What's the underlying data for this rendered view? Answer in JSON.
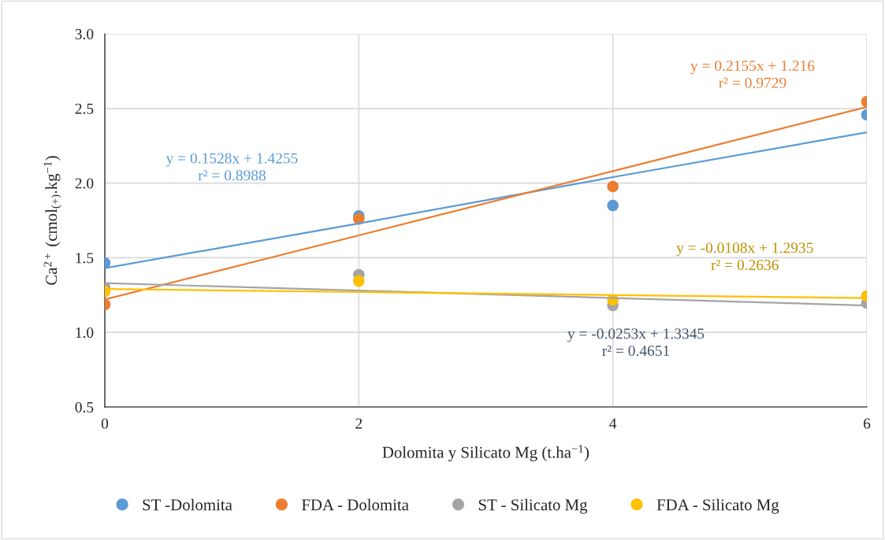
{
  "chart_data": {
    "type": "scatter",
    "xlabel": "Dolomita y Silicato Mg (t.ha$^{−1}$)",
    "ylabel": "Ca$^{2+}$ (cmol$_{(+)}$.kg$^{−1}$)",
    "x": [
      0,
      2,
      4,
      6
    ],
    "series": [
      {
        "name": "ST -Dolomita",
        "color": "#5b9bd5",
        "values": [
          1.465,
          1.78,
          1.85,
          2.457
        ]
      },
      {
        "name": "FDA - Dolomita",
        "color": "#ed7d31",
        "values": [
          1.186,
          1.76,
          1.977,
          2.546
        ]
      },
      {
        "name": "ST - Silicato Mg",
        "color": "#a5a5a5",
        "values": [
          1.3,
          1.386,
          1.18,
          1.196
        ]
      },
      {
        "name": "FDA - Silicato Mg",
        "color": "#ffc000",
        "values": [
          1.275,
          1.344,
          1.217,
          1.244
        ]
      },
      {
        "type": "line",
        "color": "#5b9bd5",
        "values": [
          1.43,
          1.73,
          2.04,
          2.34
        ],
        "marker": "none"
      },
      {
        "type": "line",
        "color": "#ed7d31",
        "values": [
          1.22,
          1.65,
          2.08,
          2.51
        ],
        "marker": "none"
      },
      {
        "type": "line",
        "color": "#a5a5a5",
        "values": [
          1.33,
          1.28,
          1.23,
          1.18
        ],
        "marker": "none"
      },
      {
        "type": "line",
        "color": "#ffc000",
        "values": [
          1.29,
          1.27,
          1.25,
          1.23
        ],
        "marker": "none"
      }
    ],
    "annotations": [
      "y = 0.1528x + 1.4255\nr² = 0.8988",
      "y = 0.2155x + 1.216\nr² = 0.9729",
      "y = -0.0253x + 1.3345\nr² = 0.4651",
      "y = -0.0108x + 1.2935\nr² = 0.2636"
    ],
    "xlim": [
      0,
      6
    ],
    "ylim": [
      0.5,
      3.0
    ],
    "xticks": [
      0,
      2,
      4,
      6
    ],
    "yticks": [
      {
        "value": 0.5,
        "label": "0.5"
      },
      {
        "value": 1,
        "label": "1.0"
      },
      {
        "value": 1.5,
        "label": "1.5"
      },
      {
        "value": 2,
        "label": "2.0"
      },
      {
        "value": 2.5,
        "label": "2.5"
      },
      {
        "value": 3,
        "label": "3.0"
      }
    ],
    "grid": true,
    "legend": "bottom",
    "marker": "circle"
  }
}
